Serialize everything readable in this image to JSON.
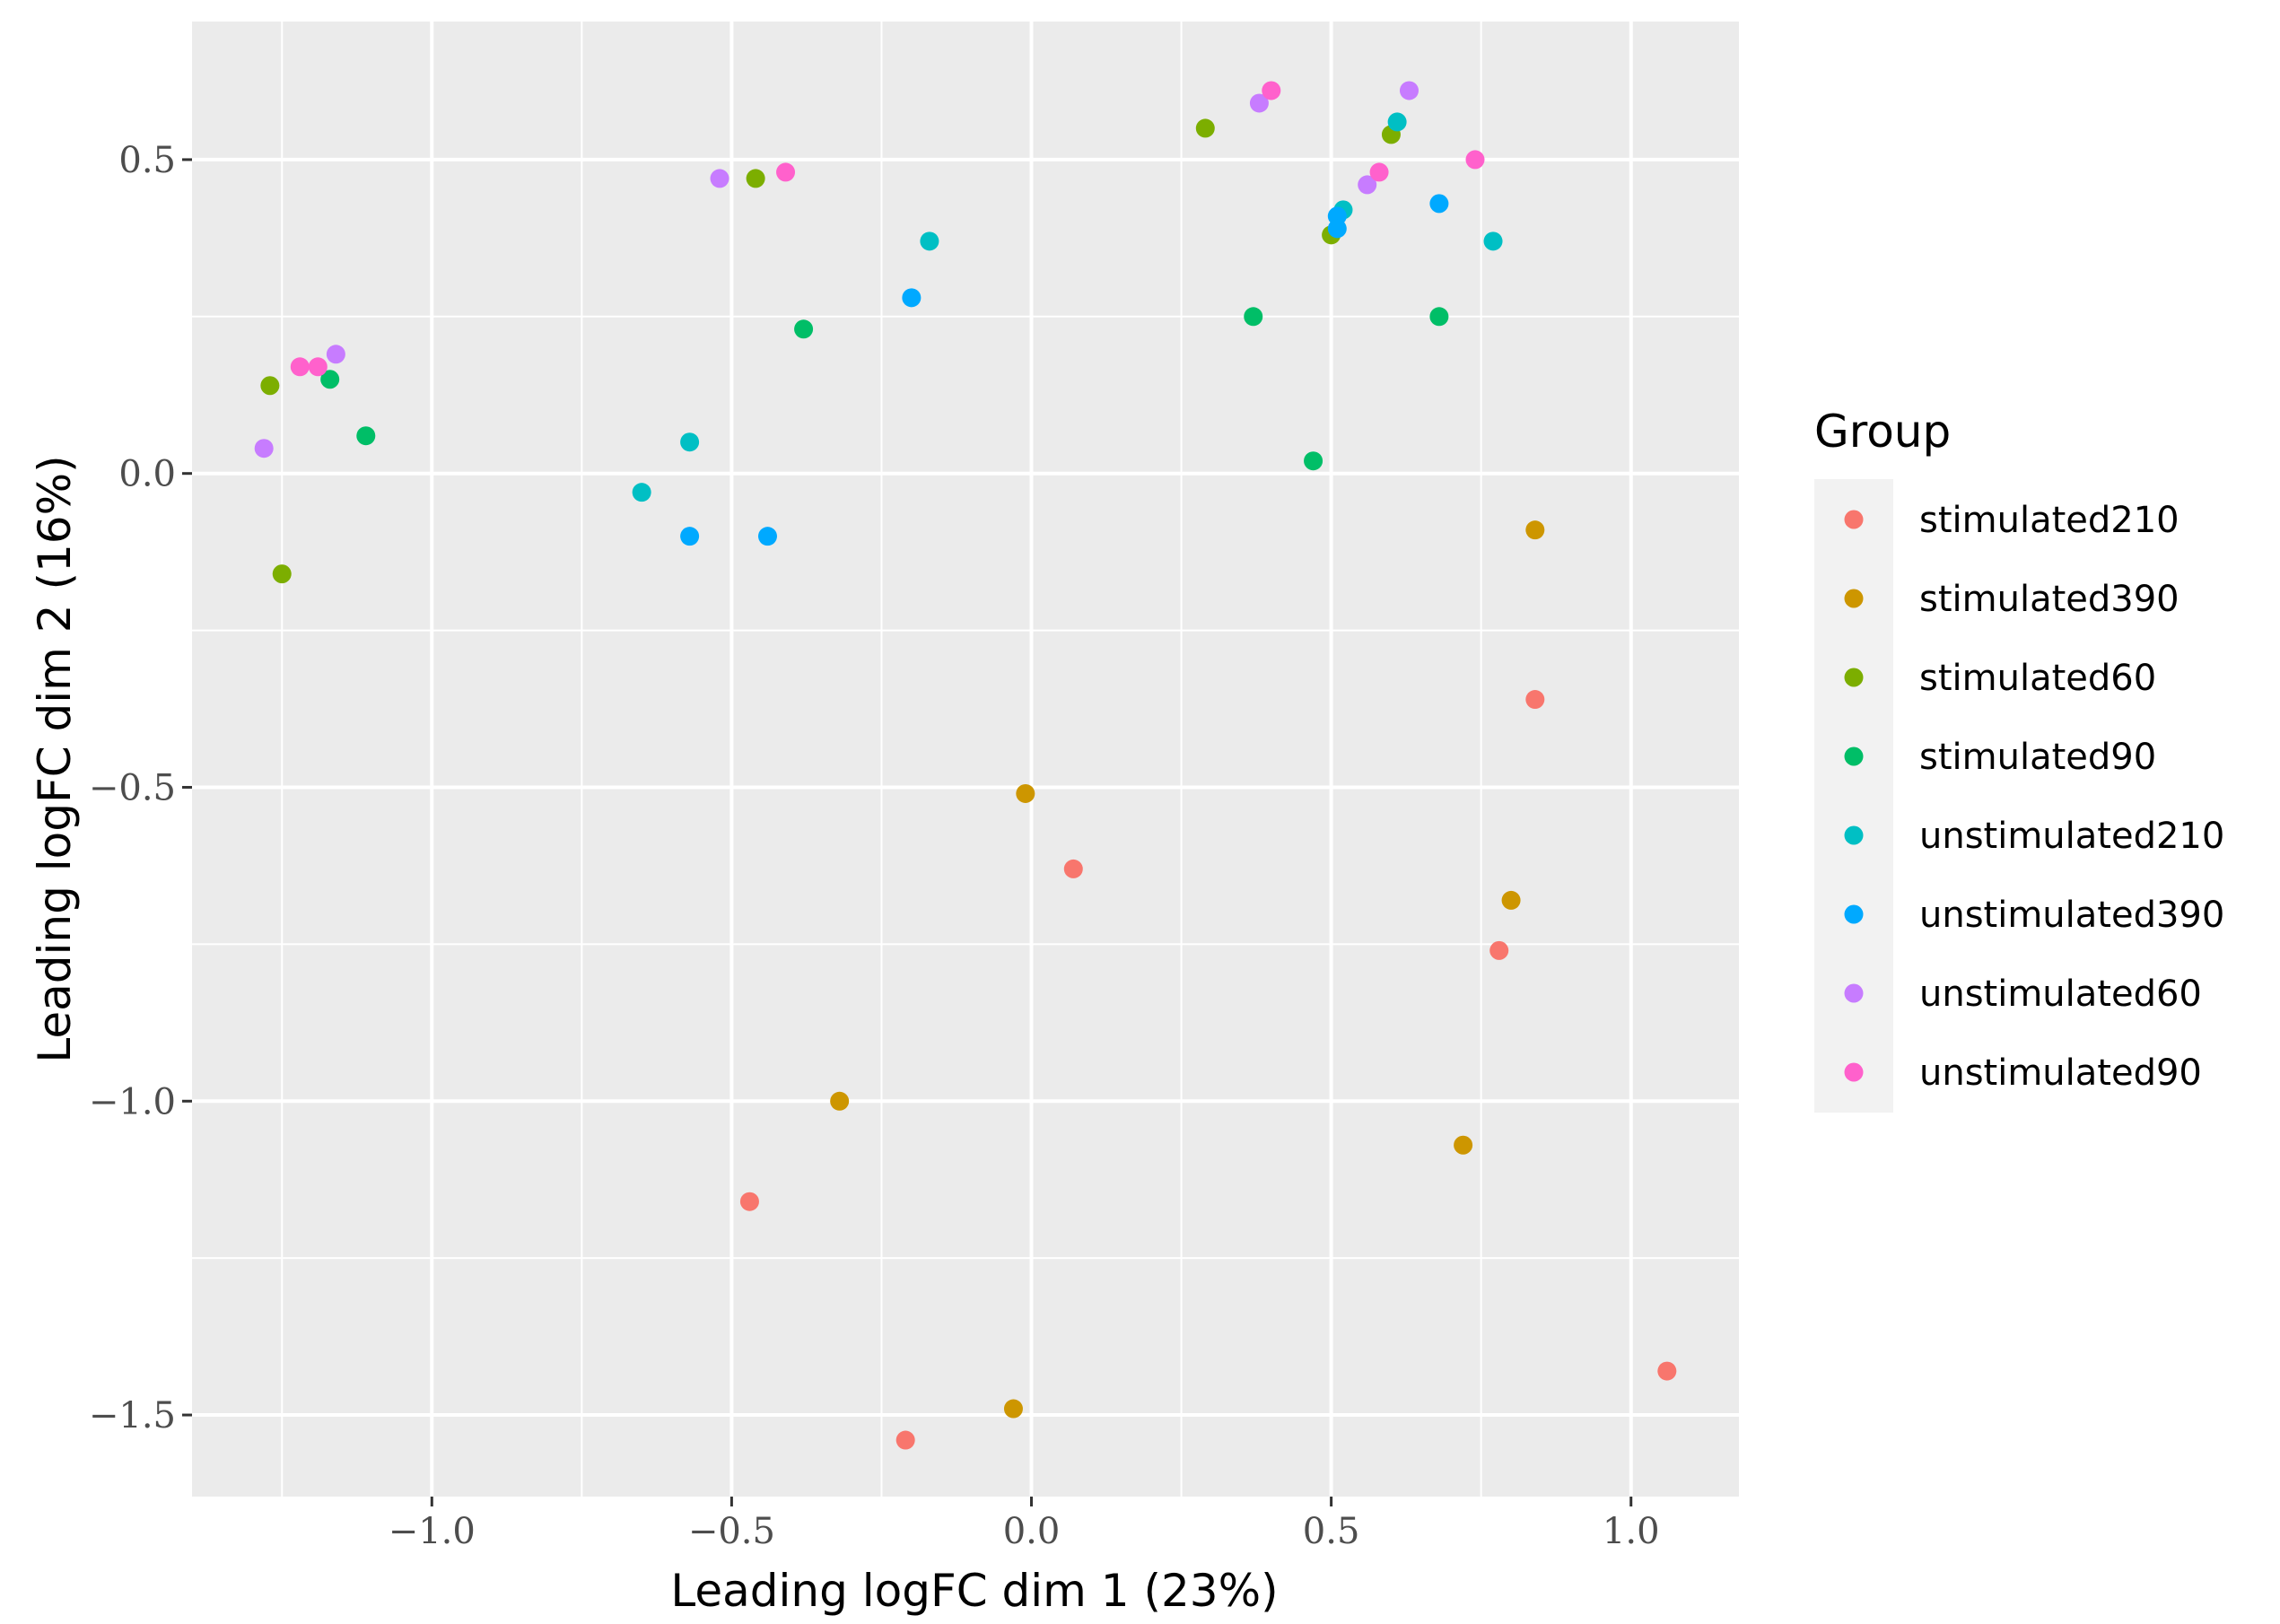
{
  "chart_data": {
    "type": "scatter",
    "title": "",
    "xlabel": "Leading logFC dim 1 (23%)",
    "ylabel": "Leading logFC dim 2 (16%)",
    "xlim": [
      -1.4,
      1.18
    ],
    "ylim": [
      -1.63,
      0.72
    ],
    "x_ticks": [
      -1.0,
      -0.5,
      0.0,
      0.5,
      1.0
    ],
    "x_tick_labels": [
      "−1.0",
      "−0.5",
      "0.0",
      "0.5",
      "1.0"
    ],
    "y_ticks": [
      0.5,
      0.0,
      -0.5,
      -1.0,
      -1.5
    ],
    "y_tick_labels": [
      "0.5",
      "0.0",
      "−0.5",
      "−1.0",
      "−1.5"
    ],
    "grid": true,
    "legend_title": "Group",
    "legend_position": "right",
    "series": [
      {
        "name": "stimulated210",
        "color": "#F8766D",
        "points": [
          [
            0.84,
            -0.36
          ],
          [
            0.07,
            -0.63
          ],
          [
            0.78,
            -0.76
          ],
          [
            -0.47,
            -1.16
          ],
          [
            -0.21,
            -1.54
          ],
          [
            1.06,
            -1.43
          ]
        ]
      },
      {
        "name": "stimulated390",
        "color": "#CD9600",
        "points": [
          [
            0.84,
            -0.09
          ],
          [
            -0.01,
            -0.51
          ],
          [
            0.8,
            -0.68
          ],
          [
            -0.32,
            -1.0
          ],
          [
            0.72,
            -1.07
          ],
          [
            -0.03,
            -1.49
          ]
        ]
      },
      {
        "name": "stimulated60",
        "color": "#7CAE00",
        "points": [
          [
            0.29,
            0.55
          ],
          [
            0.6,
            0.54
          ],
          [
            -0.46,
            0.47
          ],
          [
            0.5,
            0.38
          ],
          [
            -1.27,
            0.14
          ],
          [
            -1.25,
            -0.16
          ]
        ]
      },
      {
        "name": "stimulated90",
        "color": "#00BE67",
        "points": [
          [
            0.37,
            0.25
          ],
          [
            0.68,
            0.25
          ],
          [
            -0.38,
            0.23
          ],
          [
            -1.17,
            0.15
          ],
          [
            -1.11,
            0.06
          ],
          [
            0.47,
            0.02
          ]
        ]
      },
      {
        "name": "unstimulated210",
        "color": "#00BFC4",
        "points": [
          [
            0.61,
            0.56
          ],
          [
            0.52,
            0.42
          ],
          [
            -0.17,
            0.37
          ],
          [
            0.77,
            0.37
          ],
          [
            -0.57,
            0.05
          ],
          [
            -0.65,
            -0.03
          ]
        ]
      },
      {
        "name": "unstimulated390",
        "color": "#00A9FF",
        "points": [
          [
            0.51,
            0.41
          ],
          [
            0.68,
            0.43
          ],
          [
            0.51,
            0.39
          ],
          [
            -0.2,
            0.28
          ],
          [
            -0.57,
            -0.1
          ],
          [
            -0.44,
            -0.1
          ]
        ]
      },
      {
        "name": "unstimulated60",
        "color": "#C77CFF",
        "points": [
          [
            0.63,
            0.61
          ],
          [
            0.38,
            0.59
          ],
          [
            -0.52,
            0.47
          ],
          [
            0.56,
            0.46
          ],
          [
            -1.16,
            0.19
          ],
          [
            -1.28,
            0.04
          ]
        ]
      },
      {
        "name": "unstimulated90",
        "color": "#FF61CC",
        "points": [
          [
            0.4,
            0.61
          ],
          [
            0.74,
            0.5
          ],
          [
            0.58,
            0.48
          ],
          [
            -0.41,
            0.48
          ],
          [
            -1.22,
            0.17
          ],
          [
            -1.19,
            0.17
          ]
        ]
      }
    ]
  },
  "colors": {
    "panel_background": "#EBEBEB",
    "grid_major": "#FFFFFF",
    "legend_key_background": "#F2F2F2"
  }
}
